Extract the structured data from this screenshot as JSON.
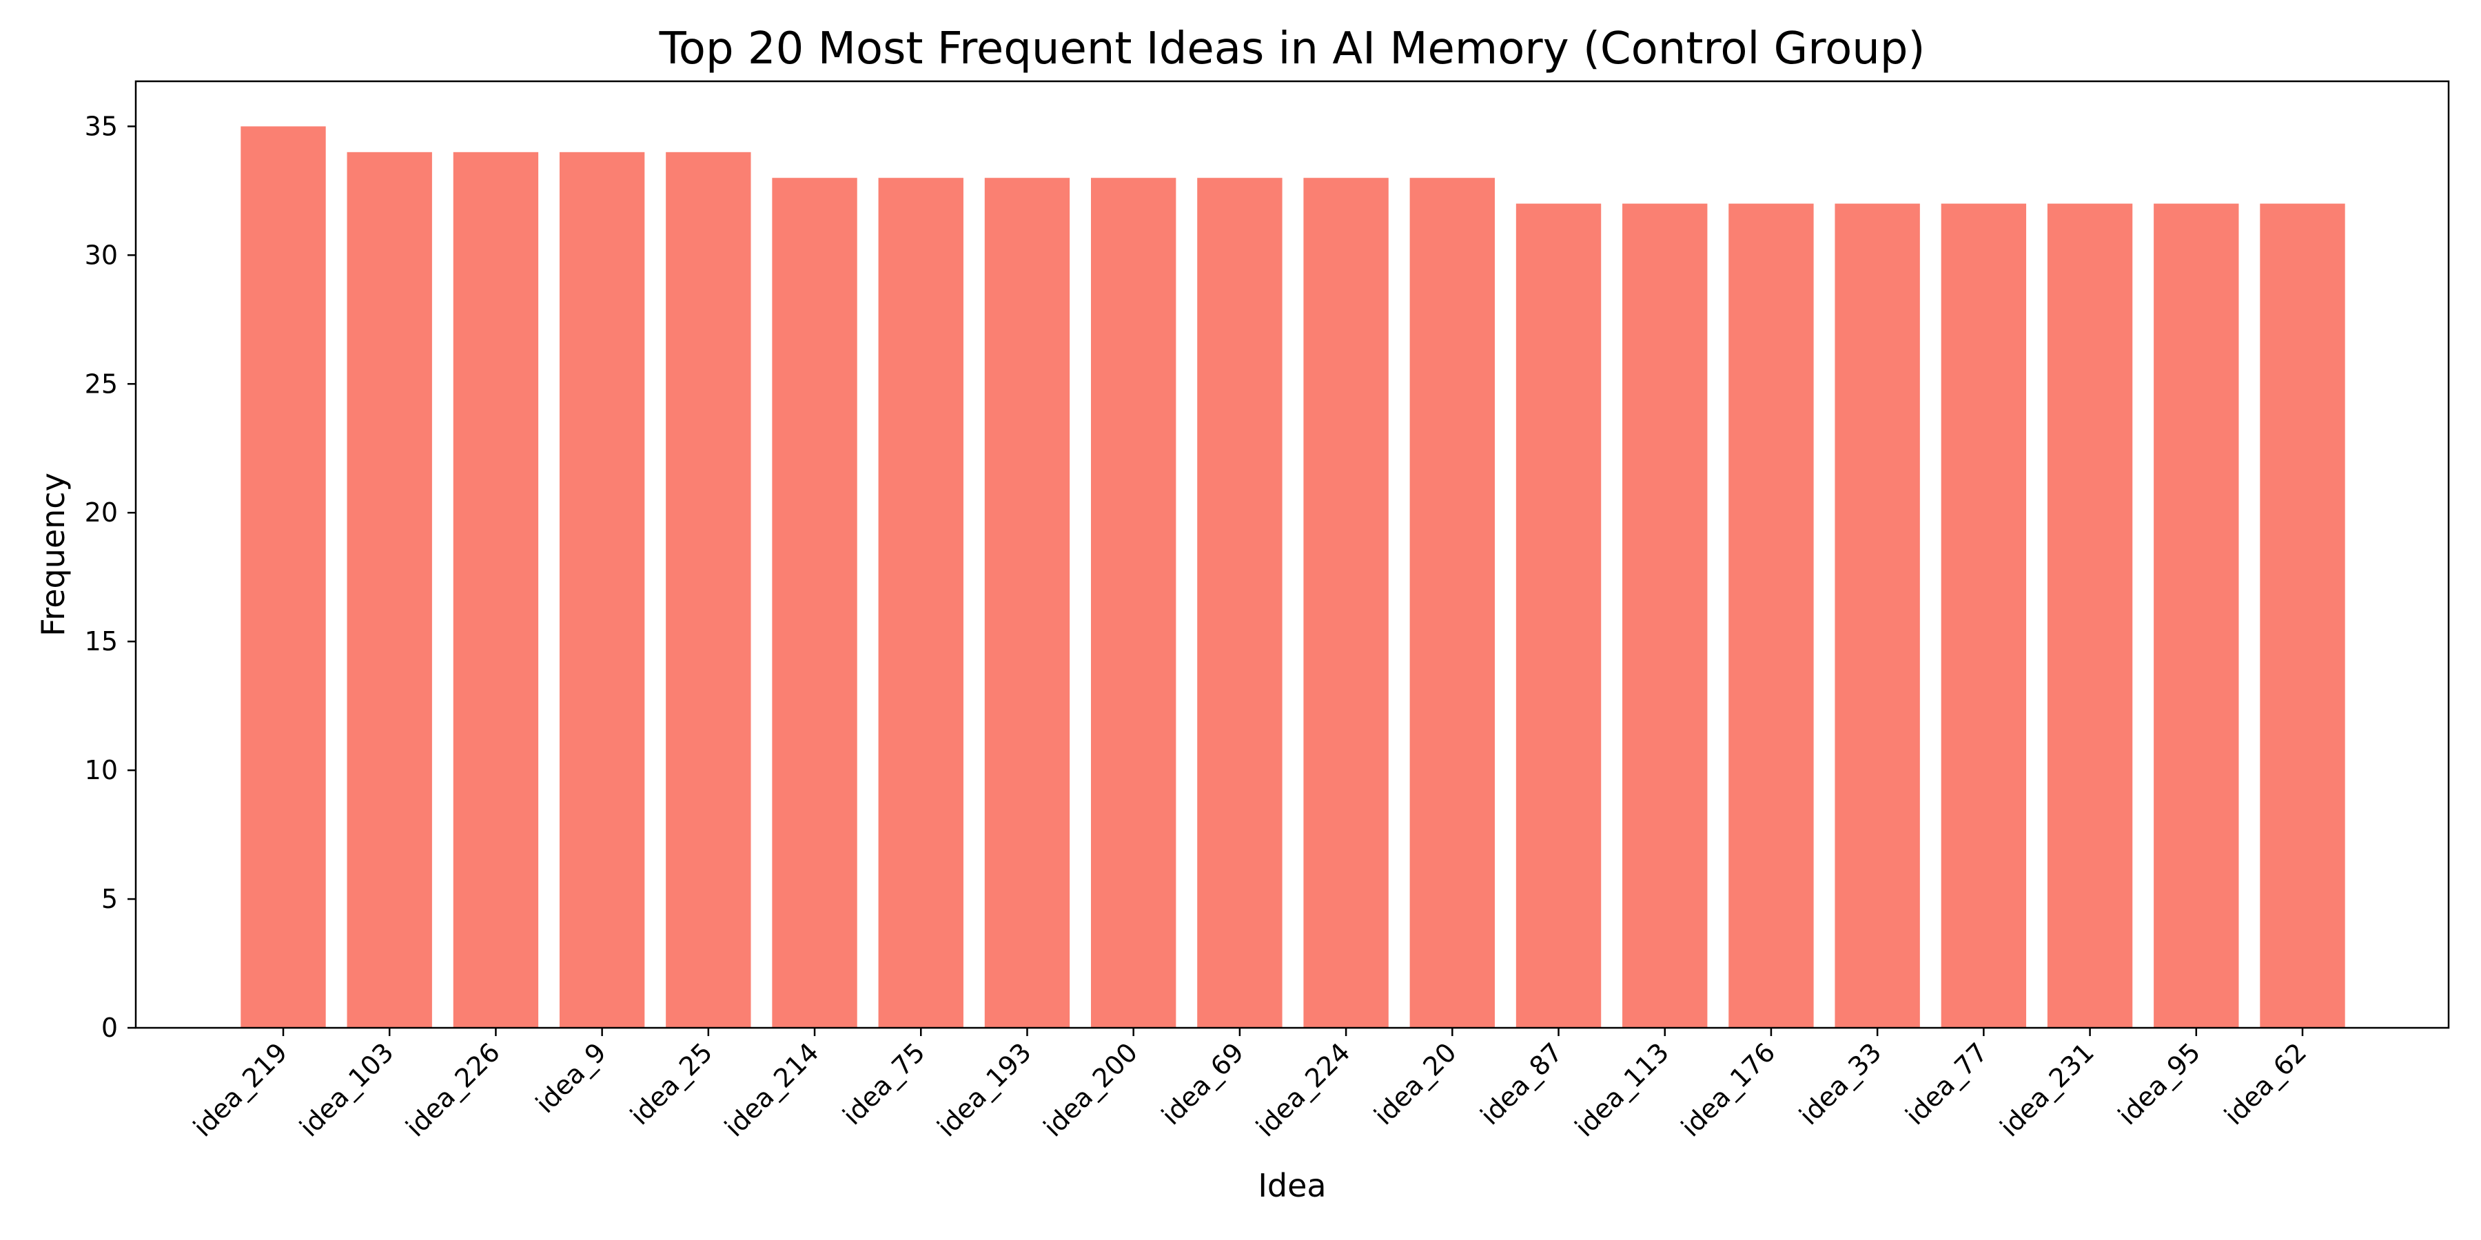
{
  "chart_data": {
    "type": "bar",
    "title": "Top 20 Most Frequent Ideas in AI Memory (Control Group)",
    "xlabel": "Idea",
    "ylabel": "Frequency",
    "categories": [
      "idea_219",
      "idea_103",
      "idea_226",
      "idea_9",
      "idea_25",
      "idea_214",
      "idea_75",
      "idea_193",
      "idea_200",
      "idea_69",
      "idea_224",
      "idea_20",
      "idea_87",
      "idea_113",
      "idea_176",
      "idea_33",
      "idea_77",
      "idea_231",
      "idea_95",
      "idea_62"
    ],
    "values": [
      35,
      34,
      34,
      34,
      34,
      33,
      33,
      33,
      33,
      33,
      33,
      33,
      32,
      32,
      32,
      32,
      32,
      32,
      32,
      32
    ],
    "ylim": [
      0,
      36.75
    ],
    "yticks": [
      0,
      5,
      10,
      15,
      20,
      25,
      30,
      35
    ],
    "bar_color": "#fa8072",
    "grid": false,
    "legend": "none"
  }
}
